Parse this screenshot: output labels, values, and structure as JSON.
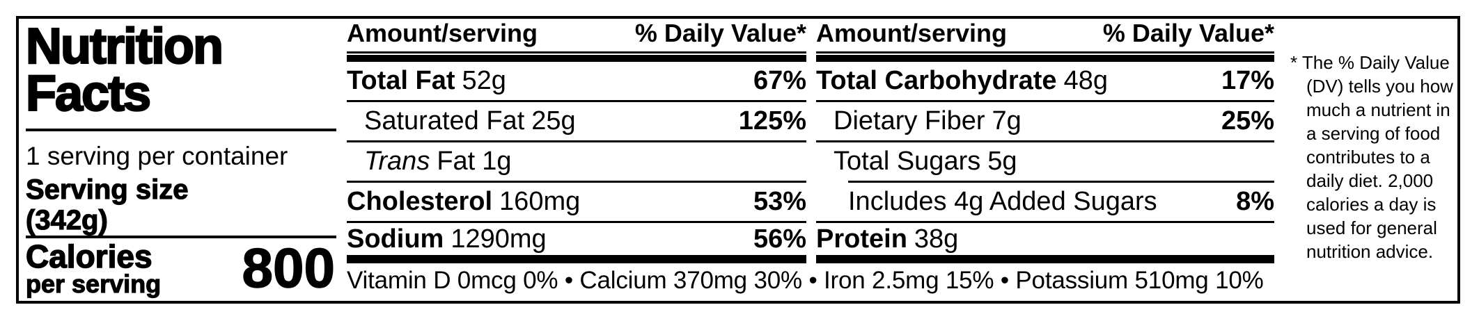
{
  "label": {
    "title": "Nutrition\nFacts",
    "servings_per_container": "1 serving per container",
    "serving_size_label": "Serving size",
    "serving_size_amount": "(342g)",
    "calories_label": "Calories",
    "calories_sublabel": "per serving",
    "calories_value": "800",
    "columns": [
      {
        "header_amount": "Amount/serving",
        "header_dv": "% Daily Value*",
        "rows": [
          {
            "name": "Total Fat",
            "amount": "52g",
            "dv": "67%"
          },
          {
            "name": "Saturated Fat",
            "amount": "25g",
            "dv": "125%"
          },
          {
            "name_italic": "Trans",
            "name": "Fat",
            "amount": "1g",
            "dv": ""
          },
          {
            "name": "Cholesterol",
            "amount": "160mg",
            "dv": "53%"
          },
          {
            "name": "Sodium",
            "amount": "1290mg",
            "dv": "56%"
          }
        ]
      },
      {
        "header_amount": "Amount/serving",
        "header_dv": "% Daily Value*",
        "rows": [
          {
            "name": "Total Carbohydrate",
            "amount": "48g",
            "dv": "17%"
          },
          {
            "name": "Dietary Fiber",
            "amount": "7g",
            "dv": "25%"
          },
          {
            "name": "Total Sugars",
            "amount": "5g",
            "dv": ""
          },
          {
            "name": "Includes 4g Added Sugars",
            "amount": "",
            "dv": "8%"
          },
          {
            "name": "Protein",
            "amount": "38g",
            "dv": ""
          }
        ]
      }
    ],
    "micronutrients": "Vitamin D 0mcg 0% • Calcium 370mg 30% • Iron 2.5mg 15% • Potassium 510mg 10%",
    "footnote": "* The % Daily Value\n(DV) tells you how\nmuch a nutrient in\na serving of food\ncontributes to a\ndaily diet. 2,000\ncalories a day is\nused for general\nnutrition advice.",
    "colors": {
      "ink": "#000000",
      "background": "#ffffff"
    }
  }
}
